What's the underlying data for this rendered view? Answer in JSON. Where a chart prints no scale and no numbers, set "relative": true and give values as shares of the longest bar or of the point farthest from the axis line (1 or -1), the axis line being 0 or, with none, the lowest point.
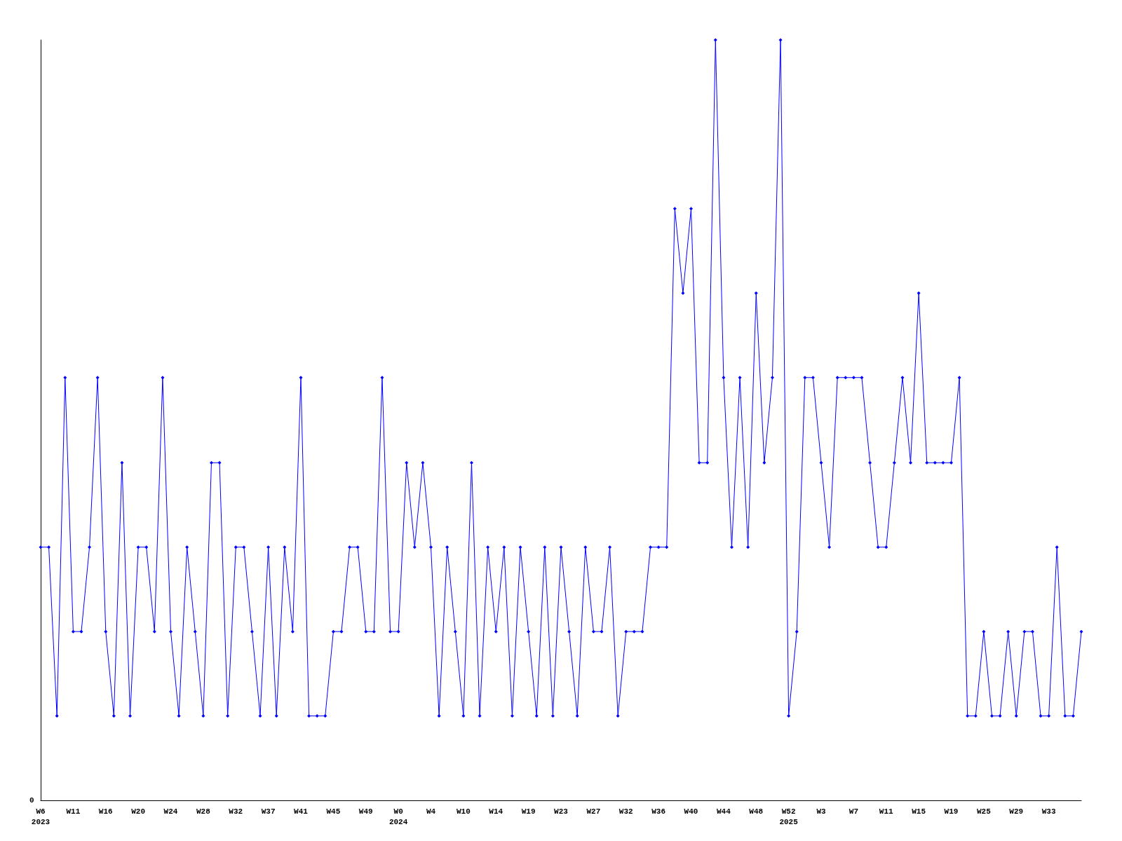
{
  "chart_data": {
    "type": "line",
    "relative": true,
    "annotations": [
      "0"
    ],
    "marker": "diamond",
    "grid": false,
    "categories": [
      "W6\n2023",
      null,
      null,
      null,
      "W11",
      null,
      null,
      null,
      "W16",
      null,
      null,
      null,
      "W20",
      null,
      null,
      null,
      "W24",
      null,
      null,
      null,
      "W28",
      null,
      null,
      null,
      "W32",
      null,
      null,
      null,
      "W37",
      null,
      null,
      null,
      "W41",
      null,
      null,
      null,
      "W45",
      null,
      null,
      null,
      "W49",
      null,
      null,
      null,
      "W0\n2024",
      null,
      null,
      null,
      "W4",
      null,
      null,
      null,
      "W10",
      null,
      null,
      null,
      "W14",
      null,
      null,
      null,
      "W19",
      null,
      null,
      null,
      "W23",
      null,
      null,
      null,
      "W27",
      null,
      null,
      null,
      "W32",
      null,
      null,
      null,
      "W36",
      null,
      null,
      null,
      "W40",
      null,
      null,
      null,
      "W44",
      null,
      null,
      null,
      "W48",
      null,
      null,
      null,
      "W52\n2025",
      null,
      null,
      null,
      "W3",
      null,
      null,
      null,
      "W7",
      null,
      null,
      null,
      "W11",
      null,
      null,
      null,
      "W15",
      null,
      null,
      null,
      "W19",
      null,
      null,
      null,
      "W25",
      null,
      null,
      null,
      "W29",
      null,
      null,
      null,
      "W33",
      null,
      null,
      null,
      null
    ],
    "series": [
      {
        "color": "#0000ff",
        "values": [
          0.333,
          0.333,
          0.111,
          0.556,
          0.222,
          0.222,
          0.333,
          0.556,
          0.222,
          0.111,
          0.444,
          0.111,
          0.333,
          0.333,
          0.222,
          0.556,
          0.222,
          0.111,
          0.333,
          0.222,
          0.111,
          0.444,
          0.444,
          0.111,
          0.333,
          0.333,
          0.222,
          0.111,
          0.333,
          0.111,
          0.333,
          0.222,
          0.556,
          0.111,
          0.111,
          0.111,
          0.222,
          0.222,
          0.333,
          0.333,
          0.222,
          0.222,
          0.556,
          0.222,
          0.222,
          0.444,
          0.333,
          0.444,
          0.333,
          0.111,
          0.333,
          0.222,
          0.111,
          0.444,
          0.111,
          0.333,
          0.222,
          0.333,
          0.111,
          0.333,
          0.222,
          0.111,
          0.333,
          0.111,
          0.333,
          0.222,
          0.111,
          0.333,
          0.222,
          0.222,
          0.333,
          0.111,
          0.222,
          0.222,
          0.222,
          0.333,
          0.333,
          0.333,
          0.778,
          0.667,
          0.778,
          0.444,
          0.444,
          1,
          0.556,
          0.333,
          0.556,
          0.333,
          0.667,
          0.444,
          0.556,
          1,
          0.111,
          0.222,
          0.556,
          0.556,
          0.444,
          0.333,
          0.556,
          0.556,
          0.556,
          0.556,
          0.444,
          0.333,
          0.333,
          0.444,
          0.556,
          0.444,
          0.667,
          0.444,
          0.444,
          0.444,
          0.444,
          0.556,
          0.111,
          0.111,
          0.222,
          0.111,
          0.111,
          0.222,
          0.111,
          0.222,
          0.222,
          0.111,
          0.111,
          0.333,
          0.111,
          0.111,
          0.222
        ]
      }
    ]
  }
}
